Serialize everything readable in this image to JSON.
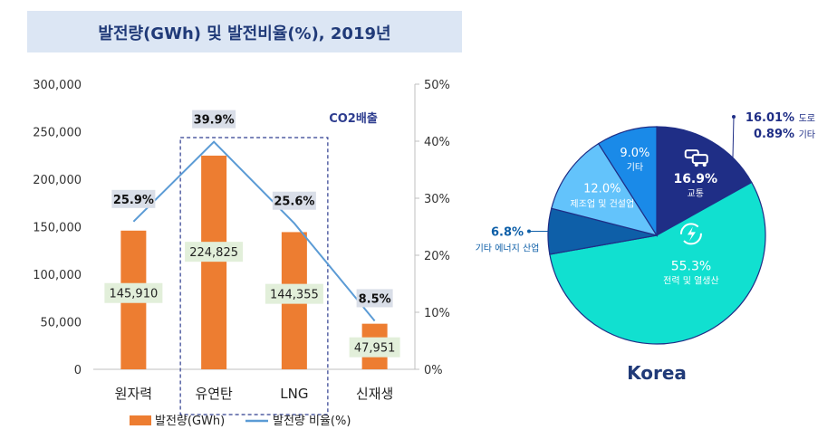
{
  "chart_data": [
    {
      "type": "bar",
      "title": "발전량(GWh) 및 발전비율(%), 2019년",
      "categories": [
        "원자력",
        "유연탄",
        "LNG",
        "신재생"
      ],
      "ylim": [
        0,
        300000
      ],
      "y2lim": [
        0,
        50
      ],
      "yticks": [
        "0",
        "50,000",
        "100,000",
        "150,000",
        "200,000",
        "250,000",
        "300,000"
      ],
      "y2ticks": [
        "0%",
        "10%",
        "20%",
        "30%",
        "40%",
        "50%"
      ],
      "series": [
        {
          "name": "발전량(GWh)",
          "kind": "bar",
          "axis": "left",
          "values": [
            145910,
            224825,
            144355,
            47951
          ],
          "labels": [
            "145,910",
            "224,825",
            "144,355",
            "47,951"
          ]
        },
        {
          "name": "발전량 비율(%)",
          "kind": "line",
          "axis": "right",
          "values": [
            25.9,
            39.9,
            25.6,
            8.5
          ],
          "labels": [
            "25.9%",
            "39.9%",
            "25.6%",
            "8.5%"
          ]
        }
      ],
      "annotation": "CO2배출",
      "colors": {
        "bar": "#ED7D31",
        "line": "#5B9BD5",
        "annotation": "#2E3D8F"
      }
    },
    {
      "type": "pie",
      "title": "Korea",
      "slices": [
        {
          "label": "교통",
          "value": 16.9,
          "label_text": "16.9%",
          "color": "#1F2E86"
        },
        {
          "label": "전력 및 열생산",
          "value": 55.3,
          "label_text": "55.3%",
          "color": "#11E0D0"
        },
        {
          "label": "기타 에너지 산업",
          "value": 6.8,
          "label_text": "6.8%",
          "color": "#0E5FA8"
        },
        {
          "label": "제조업 및 건설업",
          "value": 12.0,
          "label_text": "12.0%",
          "color": "#63C3FB"
        },
        {
          "label": "기타",
          "value": 9.0,
          "label_text": "9.0%",
          "color": "#1A8AE8"
        }
      ],
      "callouts": [
        {
          "value": "16.01%",
          "label": "도로"
        },
        {
          "value": "0.89%",
          "label": "기타"
        }
      ]
    }
  ]
}
